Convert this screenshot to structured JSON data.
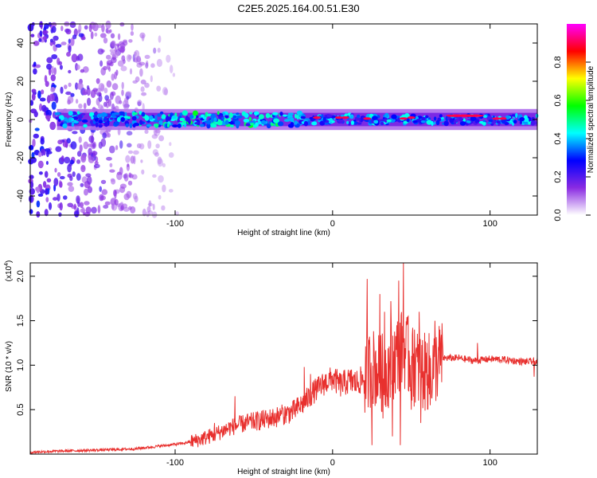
{
  "title": "C2E5.2025.164.00.51.E30",
  "colors": {
    "snr_line": "#e8302e",
    "background": "#ffffff",
    "axis": "#000000"
  },
  "chart_data": [
    {
      "type": "heatmap",
      "title": "C2E5.2025.164.00.51.E30",
      "xlabel": "Height of straight line (km)",
      "ylabel": "Frequency (Hz)",
      "xlim": [
        -192,
        130
      ],
      "ylim": [
        -50,
        50
      ],
      "xticks": [
        -100,
        0,
        100
      ],
      "yticks": [
        -40,
        -20,
        0,
        20,
        40
      ],
      "colorbar": {
        "label": "Normalized spectral amplitude",
        "range": [
          0,
          1
        ],
        "ticks": [
          "0.0",
          "0.2",
          "0.4",
          "0.6",
          "0.8"
        ],
        "colormap": [
          "#ffffff",
          "#8a2be2",
          "#0000ff",
          "#00ffff",
          "#00ff00",
          "#ffff00",
          "#ff0000",
          "#ff00ff"
        ]
      },
      "features": {
        "scatter_region_x": [
          -192,
          -95
        ],
        "band_center_hz": 0,
        "band_halfwidth_hz": 5,
        "band_start_x": -175
      }
    },
    {
      "type": "line",
      "xlabel": "Height of straight line (km)",
      "ylabel": "SNR (10 * v/v)",
      "exponent_label": "(x10",
      "exponent_sup": "4",
      "exponent_close": ")",
      "xlim": [
        -192,
        130
      ],
      "ylim": [
        0,
        2.15
      ],
      "xticks": [
        -100,
        0,
        100
      ],
      "yticks": [
        0.5,
        1.0,
        1.5,
        2.0
      ],
      "ytick_labels": [
        "0.5",
        "1.0",
        "1.5",
        "2.0"
      ],
      "series": [
        {
          "x": [
            -192,
            -180,
            -160,
            -140,
            -125,
            -115,
            -105,
            -95,
            -85,
            -75,
            -65,
            -55,
            -45,
            -35,
            -25,
            -18,
            -12,
            -5,
            0,
            5,
            10,
            15,
            20,
            25,
            30,
            35,
            40,
            45,
            50,
            55,
            60,
            65,
            70,
            80,
            90,
            100,
            110,
            120,
            130
          ],
          "y": [
            0.02,
            0.03,
            0.04,
            0.05,
            0.06,
            0.08,
            0.1,
            0.12,
            0.16,
            0.22,
            0.3,
            0.35,
            0.38,
            0.42,
            0.48,
            0.58,
            0.7,
            0.8,
            0.85,
            0.78,
            0.82,
            0.8,
            0.85,
            1.0,
            0.9,
            0.95,
            1.1,
            1.2,
            1.0,
            0.95,
            0.9,
            1.0,
            1.08,
            1.08,
            1.05,
            1.07,
            1.06,
            1.04,
            1.04
          ]
        }
      ],
      "spikes": [
        {
          "x": -75,
          "y": 0.35
        },
        {
          "x": -62,
          "y": 0.65
        },
        {
          "x": -45,
          "y": 0.48
        },
        {
          "x": -32,
          "y": 0.52
        },
        {
          "x": -18,
          "y": 0.98
        },
        {
          "x": -14,
          "y": 0.9
        },
        {
          "x": 12,
          "y": 0.95
        },
        {
          "x": 22,
          "y": 1.97
        },
        {
          "x": 25,
          "y": 1.3
        },
        {
          "x": 30,
          "y": 1.8
        },
        {
          "x": 33,
          "y": 1.6
        },
        {
          "x": 37,
          "y": 1.72
        },
        {
          "x": 42,
          "y": 1.95
        },
        {
          "x": 45,
          "y": 2.15
        },
        {
          "x": 48,
          "y": 1.55
        },
        {
          "x": 52,
          "y": 1.4
        },
        {
          "x": 55,
          "y": 1.6
        },
        {
          "x": 60,
          "y": 1.25
        },
        {
          "x": 65,
          "y": 1.5
        },
        {
          "x": 70,
          "y": 1.18
        },
        {
          "x": 92,
          "y": 1.25
        }
      ],
      "dips": [
        {
          "x": 25,
          "y": 0.1
        },
        {
          "x": 32,
          "y": 0.4
        },
        {
          "x": 38,
          "y": 0.2
        },
        {
          "x": 43,
          "y": 0.1
        },
        {
          "x": 50,
          "y": 0.5
        },
        {
          "x": 56,
          "y": 0.35
        },
        {
          "x": 62,
          "y": 0.55
        },
        {
          "x": 128,
          "y": 0.87
        }
      ]
    }
  ]
}
